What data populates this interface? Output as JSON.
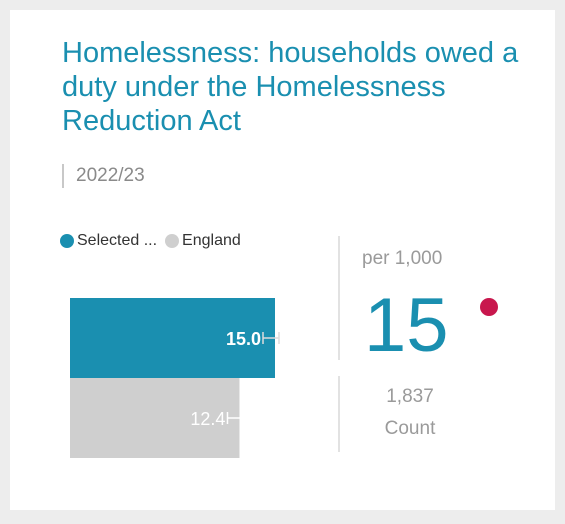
{
  "title": "Homelessness: households owed a duty under the Homelessness Reduction Act",
  "period": "2022/23",
  "legend": {
    "selected": "Selected ...",
    "england": "England"
  },
  "colors": {
    "selected": "#1a8fb0",
    "england": "#cfcfcf",
    "significance": "#c8174d"
  },
  "kpi": {
    "unit_label": "per 1,000",
    "value": "15",
    "count_value": "1,837",
    "count_label": "Count"
  },
  "chart_data": {
    "type": "bar",
    "orientation": "horizontal",
    "categories": [
      "Selected ...",
      "England"
    ],
    "values": [
      15.0,
      12.4
    ],
    "labels": [
      "15.0",
      "12.4"
    ],
    "xlim": [
      0,
      20
    ],
    "grid": false,
    "legend_position": "top-left",
    "error_bars": true
  }
}
